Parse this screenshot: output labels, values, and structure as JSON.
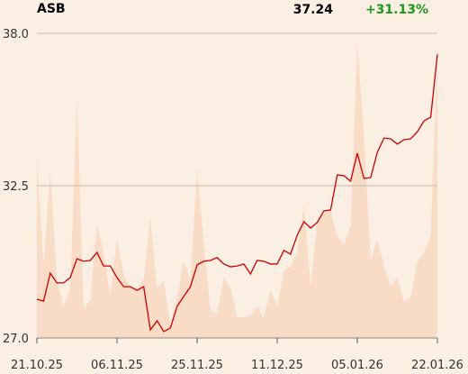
{
  "chart_data": {
    "type": "line",
    "title": "ASB",
    "last": 37.24,
    "change": "+31.13%",
    "categories": [
      "21.10.25",
      null,
      null,
      null,
      null,
      null,
      null,
      null,
      null,
      null,
      null,
      null,
      "06.11.25",
      null,
      null,
      null,
      null,
      null,
      null,
      null,
      null,
      null,
      null,
      null,
      "25.11.25",
      null,
      null,
      null,
      null,
      null,
      null,
      null,
      null,
      null,
      null,
      null,
      "11.12.25",
      null,
      null,
      null,
      null,
      null,
      null,
      null,
      null,
      null,
      null,
      null,
      "05.01.26",
      null,
      null,
      null,
      null,
      null,
      null,
      null,
      null,
      null,
      null,
      null,
      "22.01.26"
    ],
    "series": [
      {
        "name": "ASB",
        "color": "#cc0000",
        "values": [
          28.4,
          28.33,
          29.34,
          28.99,
          28.99,
          29.18,
          29.86,
          29.77,
          29.8,
          30.09,
          29.6,
          29.6,
          29.18,
          28.85,
          28.85,
          28.72,
          28.85,
          27.29,
          27.62,
          27.23,
          27.36,
          28.14,
          28.5,
          28.85,
          29.64,
          29.77,
          29.8,
          29.9,
          29.67,
          29.57,
          29.6,
          29.67,
          29.31,
          29.8,
          29.77,
          29.67,
          29.67,
          30.16,
          30.03,
          30.71,
          31.2,
          30.97,
          31.17,
          31.59,
          31.62,
          32.89,
          32.86,
          32.66,
          33.67,
          32.76,
          32.79,
          33.7,
          34.22,
          34.19,
          34.0,
          34.16,
          34.19,
          34.45,
          34.84,
          34.97,
          37.24
        ]
      },
      {
        "name": "Volume",
        "color": "#f8dcc6",
        "axis": "y2",
        "values": [
          59.2,
          23.7,
          54.7,
          19.2,
          10.4,
          16.3,
          79.0,
          9.8,
          12.4,
          37.6,
          28.1,
          13.9,
          32.5,
          20.7,
          16.9,
          16.3,
          19.2,
          39.3,
          16.3,
          18.6,
          4.4,
          13.3,
          25.1,
          19.2,
          55.3,
          31.1,
          8.9,
          8.3,
          19.8,
          16.3,
          6.8,
          6.8,
          7.4,
          10.4,
          6.8,
          15.7,
          10.4,
          22.2,
          23.4,
          28.1,
          43.5,
          16.9,
          38.2,
          41.1,
          42.0,
          33.4,
          30.5,
          37.0,
          96.7,
          66.6,
          25.7,
          32.2,
          23.7,
          16.9,
          19.8,
          11.8,
          13.3,
          25.1,
          28.1,
          33.4,
          93.2
        ]
      }
    ],
    "ylim": [
      27,
      38
    ],
    "yticks": [
      {
        "value": 27,
        "label": "27.0"
      },
      32.5,
      {
        "value": 38,
        "label": "38.0"
      }
    ],
    "y2lim": [
      0,
      100
    ],
    "grid": true
  }
}
